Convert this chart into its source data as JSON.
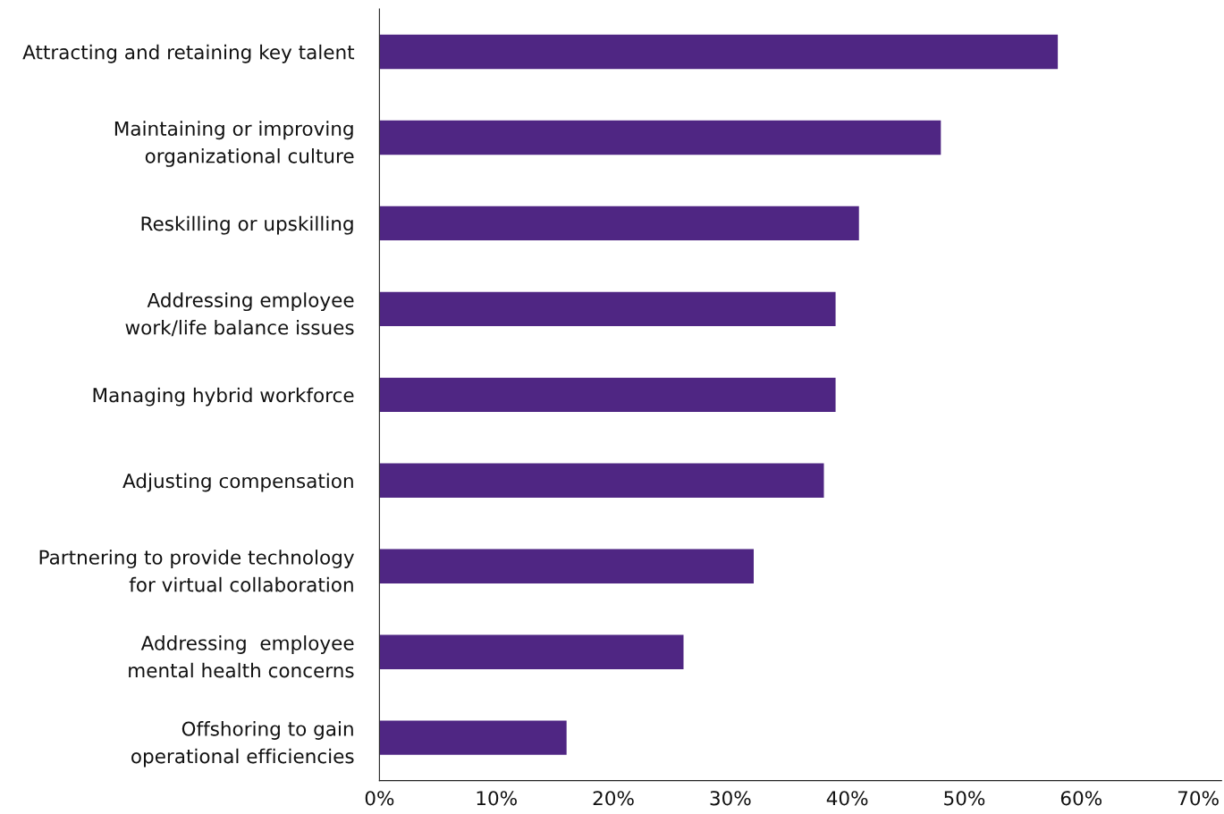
{
  "chart_data": {
    "type": "bar",
    "orientation": "horizontal",
    "categories": [
      "Attracting and retaining key talent",
      "Maintaining or improving\norganizational culture",
      "Reskilling or upskilling",
      "Addressing employee\nwork/life balance issues",
      "Managing hybrid workforce",
      "Adjusting compensation",
      "Partnering to provide technology\nfor virtual collaboration",
      "Addressing  employee\nmental health concerns",
      "Offshoring to gain\noperational efficiencies"
    ],
    "values": [
      58,
      48,
      41,
      39,
      39,
      38,
      32,
      26,
      16
    ],
    "color": "#4f2683",
    "xlim": [
      0,
      72
    ],
    "xticks": [
      {
        "value": 0,
        "label": "0%"
      },
      {
        "value": 10,
        "label": "10%"
      },
      {
        "value": 20,
        "label": "20%"
      },
      {
        "value": 30,
        "label": "30%"
      },
      {
        "value": 40,
        "label": "40%"
      },
      {
        "value": 50,
        "label": "50%"
      },
      {
        "value": 60,
        "label": "60%"
      },
      {
        "value": 70,
        "label": "70%"
      }
    ],
    "grid": false,
    "legend": false
  }
}
